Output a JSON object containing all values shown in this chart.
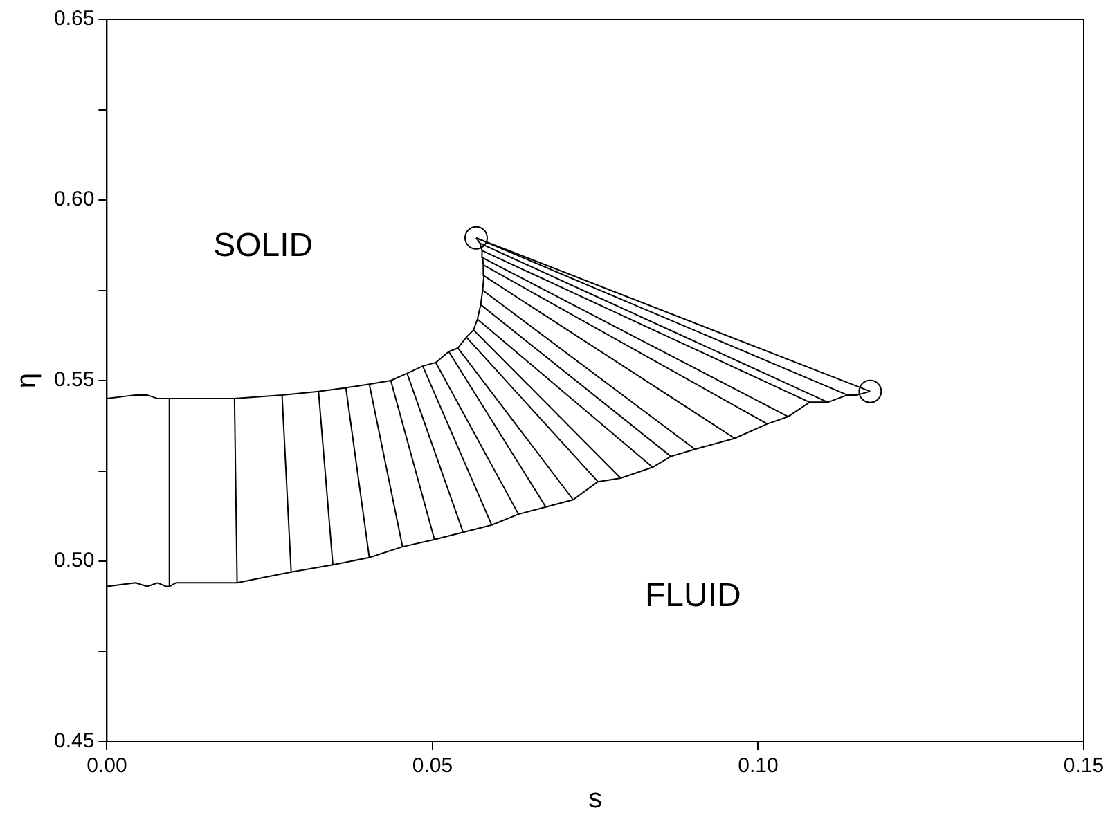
{
  "chart_data": {
    "type": "line",
    "xlabel": "s",
    "ylabel": "η",
    "xlim": [
      0,
      0.15
    ],
    "ylim": [
      0.45,
      0.65
    ],
    "xticks": [
      {
        "value": 0,
        "label": "0.00"
      },
      {
        "value": 0.05,
        "label": "0.05"
      },
      {
        "value": 0.1,
        "label": "0.10"
      },
      {
        "value": 0.15,
        "label": "0.15"
      }
    ],
    "yticks": [
      {
        "value": 0.45,
        "label": "0.45"
      },
      {
        "value": 0.475,
        "label": null
      },
      {
        "value": 0.5,
        "label": "0.50"
      },
      {
        "value": 0.525,
        "label": null
      },
      {
        "value": 0.55,
        "label": "0.55"
      },
      {
        "value": 0.575,
        "label": null
      },
      {
        "value": 0.6,
        "label": "0.60"
      },
      {
        "value": 0.625,
        "label": null
      },
      {
        "value": 0.65,
        "label": "0.65"
      }
    ],
    "grid": false,
    "legend": false,
    "marker": "none",
    "line_style": "solid",
    "annotations": [
      "SOLID",
      "FLUID"
    ],
    "series": [
      {
        "color": "#000000",
        "x": [
          0,
          0.0044,
          0.0062,
          0.0078,
          0.0091,
          0.0096,
          0.0106,
          0.0117,
          0.0128,
          0.0196,
          0.0269,
          0.0325,
          0.0367,
          0.0403,
          0.0436,
          0.0461,
          0.0485,
          0.0505,
          0.0525,
          0.0539,
          0.0552,
          0.0563,
          0.0569,
          0.0574,
          0.0577,
          0.0579,
          0.0578,
          0.0577,
          0.0576,
          0.0573,
          0.0567
        ],
        "values": [
          0.545,
          0.546,
          0.546,
          0.545,
          0.545,
          0.545,
          0.545,
          0.545,
          0.545,
          0.545,
          0.546,
          0.547,
          0.548,
          0.549,
          0.55,
          0.552,
          0.554,
          0.555,
          0.558,
          0.559,
          0.562,
          0.564,
          0.567,
          0.571,
          0.575,
          0.579,
          0.582,
          0.584,
          0.586,
          0.588,
          0.5895
        ]
      },
      {
        "color": "#000000",
        "x": [
          0,
          0.0044,
          0.0062,
          0.0078,
          0.0091,
          0.0096,
          0.0106,
          0.0117,
          0.0128,
          0.02,
          0.0283,
          0.0347,
          0.0403,
          0.0454,
          0.0503,
          0.0547,
          0.0591,
          0.0632,
          0.0674,
          0.0716,
          0.0754,
          0.0789,
          0.0838,
          0.0866,
          0.0903,
          0.0964,
          0.1014,
          0.1046,
          0.1079,
          0.1107,
          0.1137,
          0.1152,
          0.1172
        ],
        "values": [
          0.493,
          0.494,
          0.493,
          0.494,
          0.493,
          0.493,
          0.494,
          0.494,
          0.494,
          0.494,
          0.497,
          0.499,
          0.501,
          0.504,
          0.506,
          0.508,
          0.51,
          0.513,
          0.515,
          0.517,
          0.522,
          0.523,
          0.526,
          0.529,
          0.531,
          0.534,
          0.538,
          0.54,
          0.544,
          0.544,
          0.546,
          0.546,
          0.547
        ]
      },
      {
        "color": "#000000",
        "x": [
          0.0096,
          0.0096
        ],
        "values": [
          0.493,
          0.545
        ]
      },
      {
        "color": "#000000",
        "x": [
          0.02,
          0.0196
        ],
        "values": [
          0.494,
          0.545
        ]
      },
      {
        "color": "#000000",
        "x": [
          0.0283,
          0.0269
        ],
        "values": [
          0.497,
          0.546
        ]
      },
      {
        "color": "#000000",
        "x": [
          0.0347,
          0.0325
        ],
        "values": [
          0.499,
          0.547
        ]
      },
      {
        "color": "#000000",
        "x": [
          0.0403,
          0.0367
        ],
        "values": [
          0.501,
          0.548
        ]
      },
      {
        "color": "#000000",
        "x": [
          0.0454,
          0.0403
        ],
        "values": [
          0.504,
          0.549
        ]
      },
      {
        "color": "#000000",
        "x": [
          0.0503,
          0.0436
        ],
        "values": [
          0.506,
          0.55
        ]
      },
      {
        "color": "#000000",
        "x": [
          0.0547,
          0.0461
        ],
        "values": [
          0.508,
          0.552
        ]
      },
      {
        "color": "#000000",
        "x": [
          0.0591,
          0.0485
        ],
        "values": [
          0.51,
          0.554
        ]
      },
      {
        "color": "#000000",
        "x": [
          0.0632,
          0.0505
        ],
        "values": [
          0.513,
          0.555
        ]
      },
      {
        "color": "#000000",
        "x": [
          0.0674,
          0.0525
        ],
        "values": [
          0.515,
          0.558
        ]
      },
      {
        "color": "#000000",
        "x": [
          0.0716,
          0.0539
        ],
        "values": [
          0.517,
          0.559
        ]
      },
      {
        "color": "#000000",
        "x": [
          0.0754,
          0.0552
        ],
        "values": [
          0.522,
          0.562
        ]
      },
      {
        "color": "#000000",
        "x": [
          0.0789,
          0.0563
        ],
        "values": [
          0.523,
          0.564
        ]
      },
      {
        "color": "#000000",
        "x": [
          0.0838,
          0.0569
        ],
        "values": [
          0.526,
          0.567
        ]
      },
      {
        "color": "#000000",
        "x": [
          0.0866,
          0.0574
        ],
        "values": [
          0.529,
          0.571
        ]
      },
      {
        "color": "#000000",
        "x": [
          0.0903,
          0.0577
        ],
        "values": [
          0.531,
          0.575
        ]
      },
      {
        "color": "#000000",
        "x": [
          0.0964,
          0.0579
        ],
        "values": [
          0.534,
          0.579
        ]
      },
      {
        "color": "#000000",
        "x": [
          0.1014,
          0.0578
        ],
        "values": [
          0.538,
          0.582
        ]
      },
      {
        "color": "#000000",
        "x": [
          0.1046,
          0.0577
        ],
        "values": [
          0.54,
          0.584
        ]
      },
      {
        "color": "#000000",
        "x": [
          0.1079,
          0.0576
        ],
        "values": [
          0.544,
          0.586
        ]
      },
      {
        "color": "#000000",
        "x": [
          0.1107,
          0.0573
        ],
        "values": [
          0.544,
          0.588
        ]
      },
      {
        "color": "#000000",
        "x": [
          0.1137,
          0.0567
        ],
        "values": [
          0.546,
          0.5895
        ]
      },
      {
        "color": "#000000",
        "x": [
          0.1172,
          0.0567
        ],
        "values": [
          0.547,
          0.5895
        ]
      },
      {
        "type": "scatter",
        "marker": "circle",
        "color": "#000000",
        "x": [
          0.0567,
          0.1172
        ],
        "values": [
          0.5895,
          0.547
        ]
      }
    ]
  }
}
